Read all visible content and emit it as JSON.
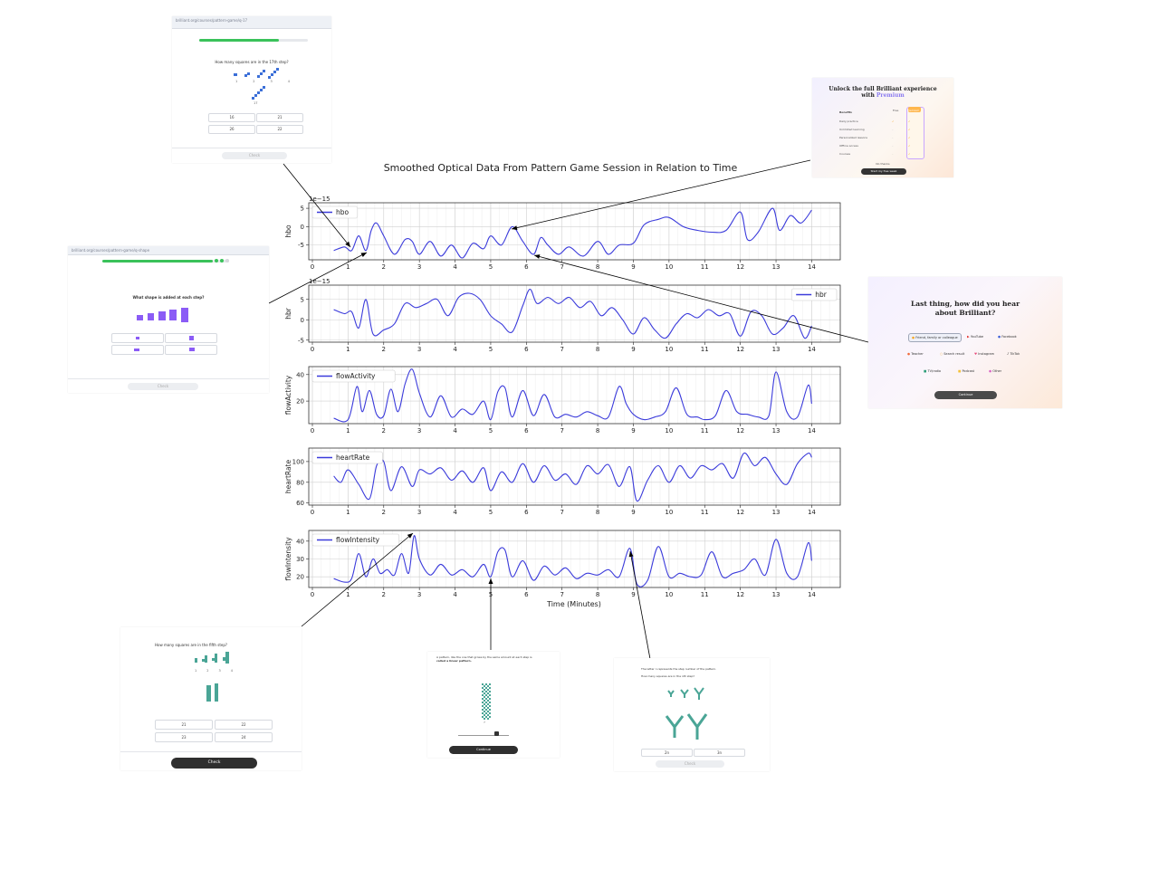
{
  "figure_title": "Smoothed Optical Data From Pattern Game Session in Relation to Time",
  "xlabel": "Time (Minutes)",
  "colors": {
    "line": "#3b3bdb",
    "grid": "#dddddd",
    "arrow": "#000000",
    "progress": "#3ac25a",
    "purple": "#8b5cf6",
    "teal": "#4aa596",
    "blue": "#3b6fd8"
  },
  "chart_data": [
    {
      "type": "line",
      "name": "hbo",
      "ylabel": "hbo",
      "scale_note": "1e−15",
      "legend": "hbo",
      "legend_loc": "upper-left",
      "xlim": [
        0,
        14.7
      ],
      "ylim": [
        -9,
        6.5
      ],
      "yticks": [
        5,
        0,
        -5
      ],
      "xticks": [
        0,
        1,
        2,
        3,
        4,
        5,
        6,
        7,
        8,
        9,
        10,
        11,
        12,
        13,
        14
      ],
      "x": [
        0.6,
        0.9,
        1.1,
        1.3,
        1.5,
        1.65,
        1.8,
        2.0,
        2.3,
        2.6,
        2.8,
        3.0,
        3.3,
        3.6,
        3.9,
        4.2,
        4.5,
        4.8,
        5.0,
        5.3,
        5.6,
        5.9,
        6.2,
        6.4,
        6.6,
        6.9,
        7.2,
        7.6,
        8.0,
        8.3,
        8.6,
        9.0,
        9.3,
        9.7,
        10.0,
        10.4,
        10.8,
        11.2,
        11.6,
        12.0,
        12.2,
        12.5,
        12.9,
        13.1,
        13.4,
        13.7,
        14.0
      ],
      "y": [
        -6.5,
        -5.5,
        -6.5,
        -2.5,
        -6.5,
        -1.0,
        1.0,
        -2.5,
        -7.5,
        -3.5,
        -4.0,
        -7.5,
        -4.0,
        -8.0,
        -5.0,
        -8.5,
        -4.5,
        -6.0,
        -2.5,
        -5.0,
        0.0,
        -4.0,
        -7.5,
        -3.0,
        -5.0,
        -7.5,
        -5.5,
        -8.0,
        -4.0,
        -7.5,
        -5.0,
        -4.5,
        0.5,
        2.0,
        2.5,
        0.0,
        -1.0,
        -1.5,
        -1.0,
        4.0,
        -3.5,
        -1.5,
        5.0,
        -1.0,
        3.0,
        1.0,
        4.5
      ]
    },
    {
      "type": "line",
      "name": "hbr",
      "ylabel": "hbr",
      "scale_note": "1e−15",
      "legend": "hbr",
      "legend_loc": "upper-right",
      "xlim": [
        0,
        14.7
      ],
      "ylim": [
        -5.5,
        8.5
      ],
      "yticks": [
        5,
        0,
        -5
      ],
      "xticks": [
        0,
        1,
        2,
        3,
        4,
        5,
        6,
        7,
        8,
        9,
        10,
        11,
        12,
        13,
        14
      ],
      "x": [
        0.6,
        0.9,
        1.1,
        1.3,
        1.5,
        1.7,
        2.0,
        2.3,
        2.6,
        2.9,
        3.2,
        3.5,
        3.8,
        4.1,
        4.4,
        4.7,
        5.0,
        5.3,
        5.6,
        5.9,
        6.1,
        6.3,
        6.6,
        6.9,
        7.2,
        7.5,
        7.8,
        8.1,
        8.4,
        8.7,
        9.0,
        9.3,
        9.6,
        9.9,
        10.2,
        10.5,
        10.8,
        11.1,
        11.4,
        11.7,
        12.0,
        12.3,
        12.6,
        12.9,
        13.2,
        13.5,
        13.8,
        14.0
      ],
      "y": [
        2.5,
        1.5,
        2.0,
        -2.0,
        5.0,
        -3.5,
        -2.5,
        -1.0,
        4.0,
        3.0,
        4.0,
        5.0,
        1.0,
        5.5,
        6.5,
        5.0,
        1.0,
        -1.0,
        -3.0,
        3.5,
        7.5,
        4.0,
        5.5,
        4.0,
        5.5,
        3.0,
        4.5,
        1.0,
        3.0,
        0.0,
        -3.5,
        0.5,
        -2.5,
        -4.5,
        -1.0,
        1.5,
        0.5,
        2.5,
        1.0,
        1.5,
        -4.0,
        2.0,
        1.0,
        -3.5,
        -2.0,
        1.0,
        -4.5,
        -1.5
      ]
    },
    {
      "type": "line",
      "name": "flowActivity",
      "ylabel": "flowActivity",
      "legend": "flowActivity",
      "legend_loc": "upper-left",
      "xlim": [
        0,
        14.7
      ],
      "ylim": [
        3,
        46
      ],
      "yticks": [
        40,
        20
      ],
      "xticks": [
        0,
        1,
        2,
        3,
        4,
        5,
        6,
        7,
        8,
        9,
        10,
        11,
        12,
        13,
        14
      ],
      "x": [
        0.6,
        1.0,
        1.25,
        1.4,
        1.6,
        1.8,
        2.0,
        2.2,
        2.4,
        2.6,
        2.8,
        3.0,
        3.3,
        3.6,
        3.9,
        4.2,
        4.5,
        4.8,
        5.0,
        5.2,
        5.4,
        5.6,
        5.9,
        6.2,
        6.5,
        6.8,
        7.1,
        7.4,
        7.7,
        8.0,
        8.3,
        8.6,
        8.8,
        9.0,
        9.3,
        9.6,
        9.9,
        10.2,
        10.5,
        10.8,
        11.0,
        11.3,
        11.6,
        11.9,
        12.2,
        12.5,
        12.8,
        13.0,
        13.3,
        13.6,
        13.9,
        14.0
      ],
      "y": [
        7,
        6,
        31,
        12,
        28,
        10,
        9,
        29,
        12,
        33,
        44,
        26,
        8,
        24,
        8,
        14,
        10,
        20,
        6,
        27,
        30,
        8,
        28,
        9,
        25,
        8,
        10,
        8,
        12,
        9,
        8,
        31,
        18,
        10,
        6,
        8,
        12,
        30,
        10,
        8,
        6,
        9,
        28,
        12,
        10,
        8,
        9,
        42,
        12,
        8,
        32,
        18
      ]
    },
    {
      "type": "line",
      "name": "heartRate",
      "ylabel": "heartRate",
      "legend": "heartRate",
      "legend_loc": "upper-left",
      "xlim": [
        0,
        14.7
      ],
      "ylim": [
        58,
        113
      ],
      "yticks": [
        100,
        80,
        60
      ],
      "xticks": [
        0,
        1,
        2,
        3,
        4,
        5,
        6,
        7,
        8,
        9,
        10,
        11,
        12,
        13,
        14
      ],
      "x": [
        0.6,
        0.8,
        1.0,
        1.3,
        1.6,
        1.8,
        2.0,
        2.2,
        2.5,
        2.8,
        3.0,
        3.3,
        3.6,
        3.9,
        4.2,
        4.5,
        4.8,
        5.0,
        5.3,
        5.6,
        5.9,
        6.2,
        6.5,
        6.8,
        7.1,
        7.4,
        7.7,
        8.0,
        8.3,
        8.6,
        8.9,
        9.1,
        9.4,
        9.7,
        10.0,
        10.3,
        10.6,
        10.9,
        11.2,
        11.5,
        11.8,
        12.1,
        12.4,
        12.7,
        13.0,
        13.3,
        13.6,
        13.9,
        14.0
      ],
      "y": [
        86,
        80,
        92,
        78,
        64,
        96,
        100,
        72,
        95,
        76,
        92,
        88,
        94,
        82,
        91,
        80,
        94,
        72,
        90,
        80,
        98,
        80,
        96,
        82,
        88,
        78,
        96,
        88,
        97,
        76,
        95,
        62,
        82,
        96,
        80,
        96,
        84,
        96,
        92,
        98,
        84,
        108,
        96,
        104,
        88,
        78,
        98,
        108,
        104
      ]
    },
    {
      "type": "line",
      "name": "flowIntensity",
      "ylabel": "flowIntensity",
      "legend": "flowIntensity",
      "legend_loc": "upper-left",
      "xlim": [
        0,
        14.7
      ],
      "ylim": [
        14,
        46
      ],
      "yticks": [
        40,
        30,
        20
      ],
      "xticks": [
        0,
        1,
        2,
        3,
        4,
        5,
        6,
        7,
        8,
        9,
        10,
        11,
        12,
        13,
        14
      ],
      "x": [
        0.6,
        0.9,
        1.1,
        1.3,
        1.5,
        1.7,
        1.9,
        2.1,
        2.3,
        2.5,
        2.7,
        2.85,
        3.0,
        3.3,
        3.6,
        3.9,
        4.2,
        4.5,
        4.8,
        5.0,
        5.2,
        5.4,
        5.6,
        5.9,
        6.2,
        6.5,
        6.8,
        7.1,
        7.4,
        7.7,
        8.0,
        8.3,
        8.6,
        8.9,
        9.1,
        9.4,
        9.7,
        10.0,
        10.3,
        10.6,
        10.9,
        11.2,
        11.5,
        11.8,
        12.1,
        12.4,
        12.7,
        13.0,
        13.3,
        13.6,
        13.9,
        14.0
      ],
      "y": [
        19,
        17,
        19,
        33,
        20,
        30,
        22,
        24,
        21,
        33,
        22,
        43,
        30,
        21,
        27,
        21,
        24,
        20,
        27,
        20,
        34,
        35,
        20,
        29,
        18,
        26,
        21,
        25,
        19,
        22,
        21,
        24,
        20,
        36,
        16,
        18,
        37,
        20,
        22,
        20,
        21,
        34,
        20,
        22,
        24,
        30,
        21,
        41,
        22,
        20,
        39,
        29
      ]
    }
  ],
  "thumbnails": {
    "t1": {
      "address": "brilliant.org/courses/pattern-game/q-17",
      "question": "How many squares are in the 17th step?",
      "step_labels": [
        "1",
        "2",
        "3",
        "4"
      ],
      "step_label_17": "17",
      "options": [
        "16",
        "21",
        "26",
        "22"
      ],
      "check": "Check"
    },
    "t2": {
      "title_line1": "Unlock the full Brilliant experience",
      "title_line2": "with",
      "title_accent": "Premium",
      "col_free": "Free",
      "col_premium": "Premium",
      "rows": [
        "Daily practice",
        "Unlimited learning",
        "Personalized lessons",
        "Offline access",
        "Courses"
      ],
      "free_row_values": [
        "✓",
        "–",
        "–",
        "–",
        "–"
      ],
      "premium_row_values": [
        "✓",
        "✓",
        "✓",
        "✓",
        "✓"
      ],
      "note": "No thanks",
      "button": "Start my free week"
    },
    "t3": {
      "address": "brilliant.org/courses/pattern-game/q-shape",
      "question": "What shape is added at each step?",
      "check": "Check"
    },
    "t4": {
      "title_line1": "Last thing, how did you hear",
      "title_line2": "about Brilliant?",
      "options": [
        "Friend, family or colleague",
        "YouTube",
        "Facebook",
        "Teacher",
        "Search result",
        "Instagram",
        "TikTok",
        "TV/radio",
        "Podcast",
        "Other"
      ],
      "button": "Continue"
    },
    "t5": {
      "question": "How many squares are in the fifth step?",
      "step_labels": [
        "1",
        "2",
        "3",
        "4"
      ],
      "options": [
        "21",
        "22",
        "23",
        "24"
      ],
      "check": "Check"
    },
    "t6": {
      "text_line1": "A pattern, like the one that grows by the same amount at each step is",
      "text_line2": "called a linear pattern.",
      "step_label": "7",
      "button": "Continue"
    },
    "t7": {
      "text_line1": "The letter n represents the step number of the pattern.",
      "question": "How many squares are in the nth step?",
      "options": [
        "2n",
        "3n"
      ],
      "check": "Check"
    }
  }
}
